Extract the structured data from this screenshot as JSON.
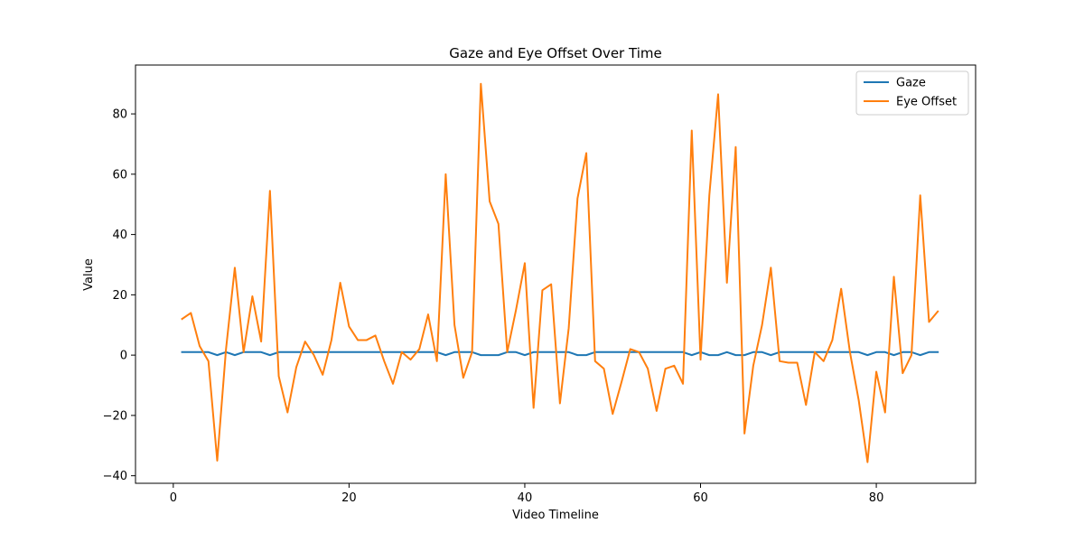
{
  "chart_data": {
    "type": "line",
    "title": "Gaze and Eye Offset Over Time",
    "xlabel": "Video Timeline",
    "ylabel": "Value",
    "xlim": [
      -4.3,
      91.3
    ],
    "ylim": [
      -42.5,
      96.2
    ],
    "xticks": [
      0,
      20,
      40,
      60,
      80
    ],
    "yticks": [
      -40,
      -20,
      0,
      20,
      40,
      60,
      80
    ],
    "grid": false,
    "legend_position": "top-right",
    "x": [
      1,
      2,
      3,
      4,
      5,
      6,
      7,
      8,
      9,
      10,
      11,
      12,
      13,
      14,
      15,
      16,
      17,
      18,
      19,
      20,
      21,
      22,
      23,
      24,
      25,
      26,
      27,
      28,
      29,
      30,
      31,
      32,
      33,
      34,
      35,
      36,
      37,
      38,
      39,
      40,
      41,
      42,
      43,
      44,
      45,
      46,
      47,
      48,
      49,
      50,
      51,
      52,
      53,
      54,
      55,
      56,
      57,
      58,
      59,
      60,
      61,
      62,
      63,
      64,
      65,
      66,
      67,
      68,
      69,
      70,
      71,
      72,
      73,
      74,
      75,
      76,
      77,
      78,
      79,
      80,
      81,
      82,
      83,
      84,
      85,
      86,
      87
    ],
    "series": [
      {
        "name": "Gaze",
        "color": "#1f77b4",
        "values": [
          1,
          1,
          1,
          1,
          0,
          1,
          0,
          1,
          1,
          1,
          0,
          1,
          1,
          1,
          1,
          1,
          1,
          1,
          1,
          1,
          1,
          1,
          1,
          1,
          1,
          1,
          1,
          1,
          1,
          1,
          0,
          1,
          1,
          1,
          0,
          0,
          0,
          1,
          1,
          0,
          1,
          1,
          1,
          1,
          1,
          0,
          0,
          1,
          1,
          1,
          1,
          1,
          1,
          1,
          1,
          1,
          1,
          1,
          0,
          1,
          0,
          0,
          1,
          0,
          0,
          1,
          1,
          0,
          1,
          1,
          1,
          1,
          1,
          1,
          1,
          1,
          1,
          1,
          0,
          1,
          1,
          0,
          1,
          1,
          0,
          1,
          1
        ]
      },
      {
        "name": "Eye Offset",
        "color": "#ff7f0e",
        "values": [
          12,
          14,
          3,
          -2,
          -35,
          2,
          29,
          1,
          19.5,
          4.5,
          54.5,
          -7,
          -19,
          -4,
          4.5,
          0,
          -6.5,
          5,
          24,
          9.5,
          5,
          5,
          6.5,
          -2,
          -9.5,
          1,
          -1.5,
          2,
          13.5,
          -2,
          60,
          10,
          -7.5,
          1,
          90,
          51,
          43.5,
          1,
          15,
          30.5,
          -17.5,
          21.5,
          23.5,
          -16,
          9,
          52,
          67,
          -2,
          -4.5,
          -19.5,
          -9,
          2,
          1,
          -4.5,
          -18.5,
          -4.5,
          -3.5,
          -9.5,
          74.5,
          -1.5,
          53,
          86.5,
          24,
          69,
          -26,
          -3.5,
          10,
          29,
          -2,
          -2.5,
          -2.5,
          -16.5,
          1,
          -2,
          5,
          22,
          1,
          -15,
          -35.5,
          -5.5,
          -19,
          26,
          -6,
          0,
          53,
          11,
          14.5
        ]
      }
    ]
  }
}
